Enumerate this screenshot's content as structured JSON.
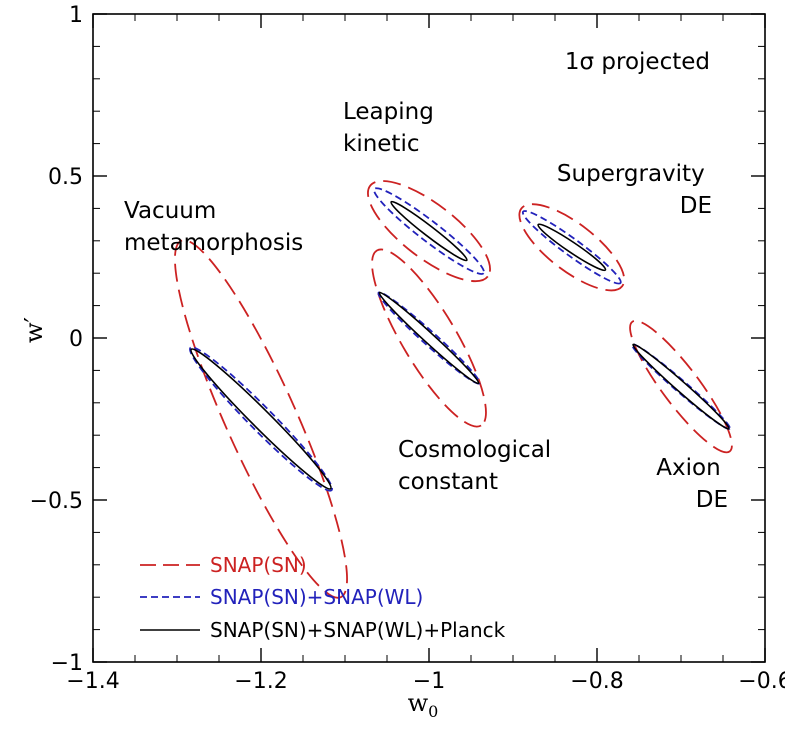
{
  "chart_data": {
    "type": "scatter",
    "title": "",
    "xlabel": "w",
    "xlabel_sub": "0",
    "ylabel": "w′",
    "xlim": [
      -1.4,
      -0.6
    ],
    "ylim": [
      -1,
      1
    ],
    "xticks": [
      -1.4,
      -1.2,
      -1,
      -0.8,
      -0.6
    ],
    "xtick_labels": [
      "−1.4",
      "−1.2",
      "−1",
      "−0.8",
      "−0.6"
    ],
    "yticks": [
      -1,
      -0.5,
      0,
      0.5,
      1
    ],
    "ytick_labels": [
      "−1",
      "−0.5",
      "0",
      "0.5",
      "1"
    ],
    "annotation": "1σ projected",
    "models": [
      {
        "label_lines": [
          "Vacuum",
          "metamorphosis"
        ],
        "center": [
          -1.2,
          -0.25
        ]
      },
      {
        "label_lines": [
          "Leaping",
          "kinetic"
        ],
        "center": [
          -1.0,
          0.33
        ]
      },
      {
        "label_lines": [
          "Supergravity",
          "DE"
        ],
        "center": [
          -0.83,
          0.28
        ]
      },
      {
        "label_lines": [
          "Cosmological",
          "constant"
        ],
        "center": [
          -1.0,
          0.0
        ]
      },
      {
        "label_lines": [
          "Axion",
          "DE"
        ],
        "center": [
          -0.7,
          -0.15
        ]
      }
    ],
    "series": [
      {
        "name": "SNAP(SN)",
        "color": "#cc2222",
        "style": "long-dash",
        "ellipses": [
          {
            "cx": -1.2,
            "cy": -0.25,
            "a_x": 0.095,
            "a_y": 0.55,
            "b_perp": 0.042
          },
          {
            "cx": -1.0,
            "cy": 0.33,
            "a_x": 0.07,
            "a_y": 0.14,
            "b_perp": 0.032
          },
          {
            "cx": -0.83,
            "cy": 0.28,
            "a_x": 0.06,
            "a_y": 0.12,
            "b_perp": 0.028
          },
          {
            "cx": -1.0,
            "cy": 0.0,
            "a_x": 0.062,
            "a_y": 0.27,
            "b_perp": 0.032
          },
          {
            "cx": -0.7,
            "cy": -0.15,
            "a_x": 0.058,
            "a_y": 0.2,
            "b_perp": 0.022
          }
        ]
      },
      {
        "name": "SNAP(SN)+SNAP(WL)",
        "color": "#2222bb",
        "style": "short-dash",
        "ellipses": [
          {
            "cx": -1.2,
            "cy": -0.25,
            "a_x": 0.084,
            "a_y": 0.22,
            "b_perp": 0.014
          },
          {
            "cx": -1.0,
            "cy": 0.33,
            "a_x": 0.065,
            "a_y": 0.13,
            "b_perp": 0.012
          },
          {
            "cx": -0.83,
            "cy": 0.28,
            "a_x": 0.058,
            "a_y": 0.11,
            "b_perp": 0.01
          },
          {
            "cx": -1.0,
            "cy": 0.0,
            "a_x": 0.06,
            "a_y": 0.14,
            "b_perp": 0.008
          },
          {
            "cx": -0.7,
            "cy": -0.15,
            "a_x": 0.058,
            "a_y": 0.13,
            "b_perp": 0.007
          }
        ]
      },
      {
        "name": "SNAP(SN)+SNAP(WL)+Planck",
        "color": "#000000",
        "style": "solid",
        "ellipses": [
          {
            "cx": -1.2,
            "cy": -0.25,
            "a_x": 0.083,
            "a_y": 0.215,
            "b_perp": 0.011
          },
          {
            "cx": -1.0,
            "cy": 0.33,
            "a_x": 0.045,
            "a_y": 0.09,
            "b_perp": 0.006
          },
          {
            "cx": -0.83,
            "cy": 0.28,
            "a_x": 0.04,
            "a_y": 0.07,
            "b_perp": 0.006
          },
          {
            "cx": -1.0,
            "cy": 0.0,
            "a_x": 0.059,
            "a_y": 0.14,
            "b_perp": 0.006
          },
          {
            "cx": -0.7,
            "cy": -0.15,
            "a_x": 0.057,
            "a_y": 0.13,
            "b_perp": 0.006
          }
        ]
      }
    ],
    "legend_position": "bottom-left"
  }
}
